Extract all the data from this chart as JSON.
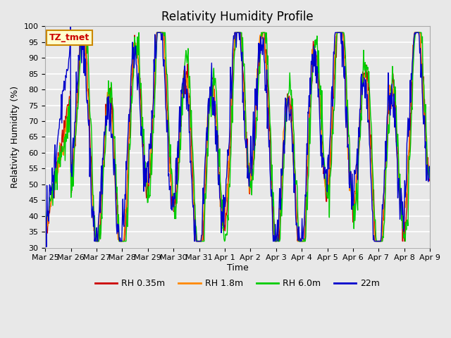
{
  "title": "Relativity Humidity Profile",
  "xlabel": "Time",
  "ylabel": "Relativity Humidity (%)",
  "ylim": [
    30,
    100
  ],
  "yticks": [
    30,
    35,
    40,
    45,
    50,
    55,
    60,
    65,
    70,
    75,
    80,
    85,
    90,
    95,
    100
  ],
  "annotation_text": "TZ_tmet",
  "legend_labels": [
    "RH 0.35m",
    "RH 1.8m",
    "RH 6.0m",
    "22m"
  ],
  "line_colors": [
    "#cc0000",
    "#ff8800",
    "#00cc00",
    "#0000cc"
  ],
  "plot_bg_color": "#e8e8e8",
  "x_tick_labels": [
    "Mar 25",
    "Mar 26",
    "Mar 27",
    "Mar 28",
    "Mar 29",
    "Mar 30",
    "Mar 31",
    "Apr 1",
    "Apr 2",
    "Apr 3",
    "Apr 4",
    "Apr 5",
    "Apr 6",
    "Apr 7",
    "Apr 8",
    "Apr 9"
  ],
  "n_days": 15,
  "points_per_day": 48
}
